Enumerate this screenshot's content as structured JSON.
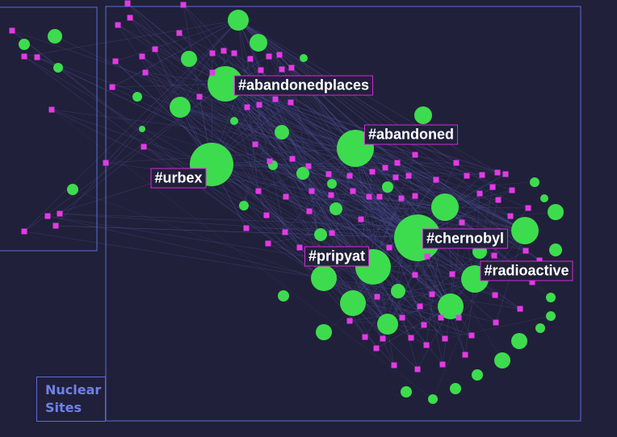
{
  "tags": {
    "abandonedplaces": "#abandonedplaces",
    "abandoned": "#abandoned",
    "urbex": "#urbex",
    "chernobyl": "#chernobyl",
    "pripyat": "#pripyat",
    "radioactive": "#radioactive"
  },
  "group_label": "Nuclear Sites",
  "colors": {
    "background": "#21203a",
    "hashtag_node": "#3ddc4e",
    "user_node": "#e33ae6",
    "edge": "#5a5fb0",
    "frame": "#5c6bd6",
    "tag_border": "#d32ad9"
  }
}
